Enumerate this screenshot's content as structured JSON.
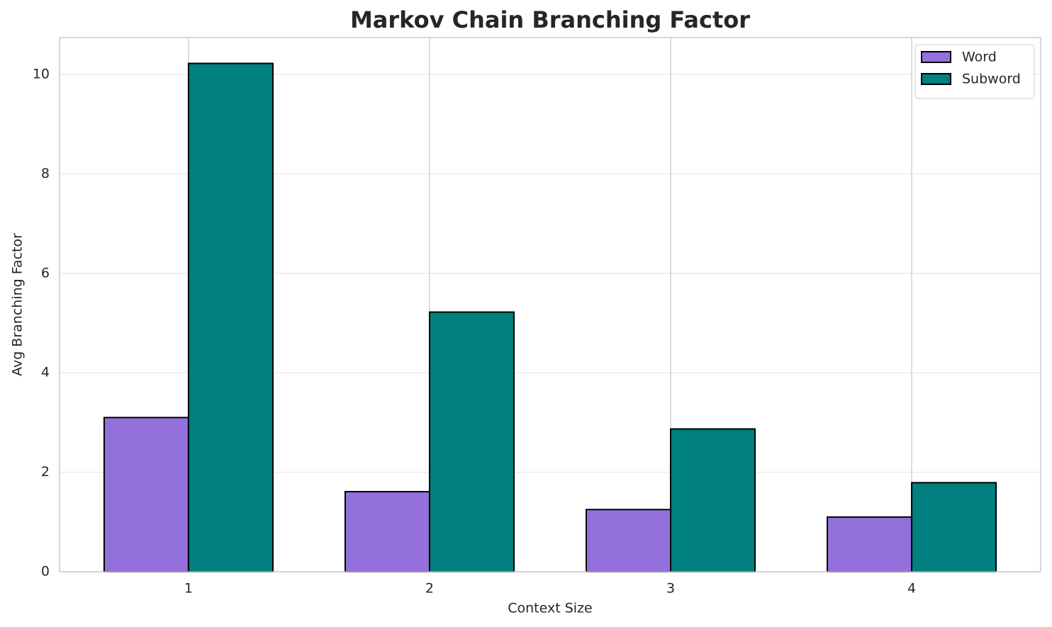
{
  "chart_data": {
    "type": "bar",
    "title": "Markov Chain Branching Factor",
    "x_label": "Context Size",
    "y_label": "Avg Branching Factor",
    "categories": [
      "1",
      "2",
      "3",
      "4"
    ],
    "series": [
      {
        "name": "Word",
        "color": "#9370db",
        "values": [
          3.1,
          1.61,
          1.25,
          1.1
        ]
      },
      {
        "name": "Subword",
        "color": "#008080",
        "values": [
          10.22,
          5.22,
          2.87,
          1.79
        ]
      }
    ],
    "ylim": [
      0,
      10.74
    ],
    "yticks": [
      0,
      2,
      4,
      6,
      8,
      10
    ],
    "grid": true,
    "legend": "upper right"
  }
}
